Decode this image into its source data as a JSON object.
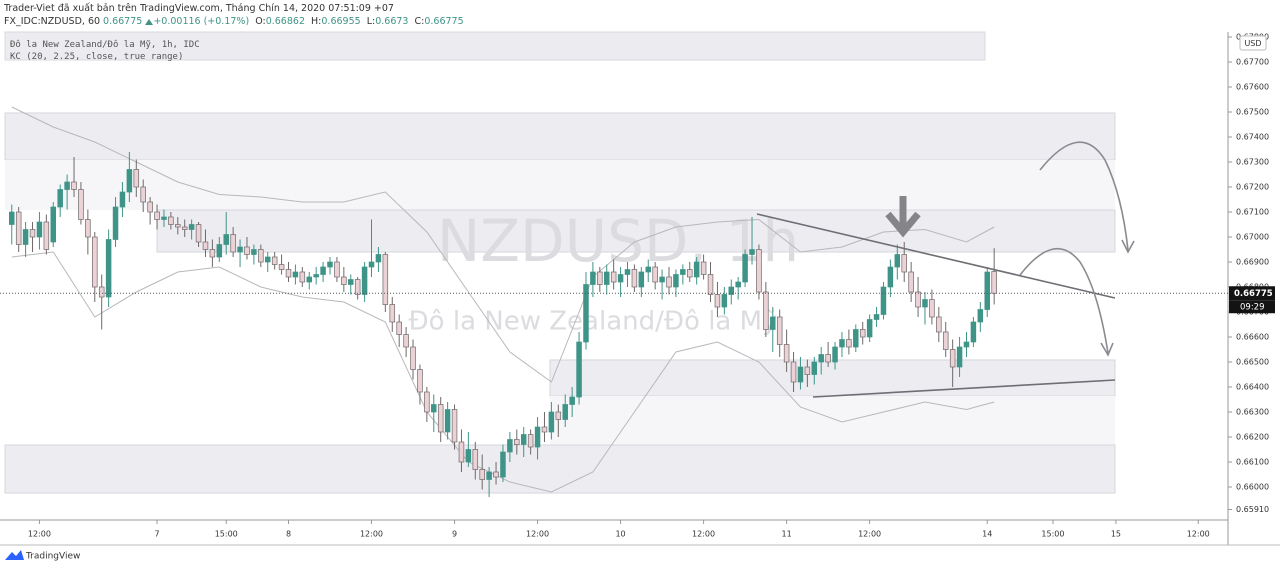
{
  "header": {
    "publisher": "Trader-Viet đã xuất bản trên TradingView.com, Tháng Chín 14, 2020 07:51:09 +07",
    "symbol": "FX_IDC:NZDUSD, 60",
    "change": "+0.00116 (+0.17%)",
    "o_label": "O:",
    "h_label": "H:",
    "l_label": "L:",
    "c_label": "C:"
  },
  "footer": {
    "brand": "TradingView"
  },
  "chart_data": {
    "type": "candlestick",
    "title": "Đô la New Zealand/Đô la Mỹ, 1h, IDC",
    "watermark": "NZDUSD, 1h",
    "watermark_subtitle": "Đô la New Zealand/Đô la Mỹ",
    "currency": "USD",
    "countdown": "09:29",
    "up_color": "#3f9488",
    "down_color": "#ead2d6",
    "grid": false,
    "xlim": [
      -1.7,
      175.8
    ],
    "ylim": [
      0.65868,
      0.6782
    ],
    "xticks": [
      {
        "value": 4,
        "label": "12:00"
      },
      {
        "value": 21,
        "label": "7"
      },
      {
        "value": 31,
        "label": "15:00"
      },
      {
        "value": 40,
        "label": "8"
      },
      {
        "value": 52,
        "label": "12:00"
      },
      {
        "value": 64,
        "label": "9"
      },
      {
        "value": 76,
        "label": "12:00"
      },
      {
        "value": 88,
        "label": "10"
      },
      {
        "value": 100,
        "label": "12:00"
      },
      {
        "value": 112,
        "label": "11"
      },
      {
        "value": 124,
        "label": "12:00"
      },
      {
        "value": 141,
        "label": "14"
      },
      {
        "value": 150.5,
        "label": "15:00"
      },
      {
        "value": 159.6,
        "label": "15"
      },
      {
        "value": 171.5,
        "label": "12:00"
      }
    ],
    "yticks": [
      {
        "value": 0.6591,
        "label": "0.65910"
      },
      {
        "value": 0.66,
        "label": "0.66000"
      },
      {
        "value": 0.661,
        "label": "0.66100"
      },
      {
        "value": 0.662,
        "label": "0.66200"
      },
      {
        "value": 0.663,
        "label": "0.66300"
      },
      {
        "value": 0.664,
        "label": "0.66400"
      },
      {
        "value": 0.665,
        "label": "0.66500"
      },
      {
        "value": 0.666,
        "label": "0.66600"
      },
      {
        "value": 0.667,
        "label": "0.66700"
      },
      {
        "value": 0.668,
        "label": "0.66800"
      },
      {
        "value": 0.669,
        "label": "0.66900"
      },
      {
        "value": 0.67,
        "label": "0.67000"
      },
      {
        "value": 0.671,
        "label": "0.67100"
      },
      {
        "value": 0.672,
        "label": "0.67200"
      },
      {
        "value": 0.673,
        "label": "0.67300"
      },
      {
        "value": 0.674,
        "label": "0.67400"
      },
      {
        "value": 0.675,
        "label": "0.67500"
      },
      {
        "value": 0.676,
        "label": "0.67600"
      },
      {
        "value": 0.677,
        "label": "0.67700"
      },
      {
        "value": 0.678,
        "label": "0.67800"
      }
    ],
    "ohlc": {
      "open": [
        0.6705,
        0.671,
        0.6697,
        0.6703,
        0.67,
        0.6706,
        0.6698,
        0.6712,
        0.6719,
        0.6722,
        0.6719,
        0.6707,
        0.67,
        0.668,
        0.6676,
        0.6699,
        0.6712,
        0.6718,
        0.6727,
        0.672,
        0.6714,
        0.671,
        0.6707,
        0.6708,
        0.6705,
        0.6704,
        0.6703,
        0.6705,
        0.6698,
        0.6695,
        0.6692,
        0.6697,
        0.6701,
        0.6694,
        0.6696,
        0.6693,
        0.6695,
        0.669,
        0.6692,
        0.6689,
        0.6687,
        0.6684,
        0.6686,
        0.6682,
        0.6684,
        0.6685,
        0.6688,
        0.669,
        0.6684,
        0.6681,
        0.6683,
        0.6677,
        0.6688,
        0.669,
        0.6693,
        0.6673,
        0.6666,
        0.6661,
        0.6656,
        0.6647,
        0.6638,
        0.663,
        0.6633,
        0.6622,
        0.6631,
        0.6618,
        0.661,
        0.6615,
        0.6607,
        0.6603,
        0.6606,
        0.6604,
        0.6614,
        0.6619,
        0.6617,
        0.6621,
        0.6616,
        0.6624,
        0.6622,
        0.663,
        0.6627,
        0.6633,
        0.6636,
        0.6658,
        0.6681,
        0.6686,
        0.6681,
        0.6686,
        0.6682,
        0.6685,
        0.6687,
        0.668,
        0.6686,
        0.6688,
        0.6682,
        0.6684,
        0.668,
        0.6685,
        0.6687,
        0.6684,
        0.669,
        0.6685,
        0.6677,
        0.6672,
        0.6677,
        0.668,
        0.6682,
        0.6693,
        0.6695,
        0.6678,
        0.6663,
        0.6668,
        0.6657,
        0.665,
        0.6642,
        0.6648,
        0.6645,
        0.665,
        0.6653,
        0.665,
        0.6656,
        0.6659,
        0.6656,
        0.6663,
        0.666,
        0.6667,
        0.6669,
        0.668,
        0.6688,
        0.6693,
        0.6686,
        0.6678,
        0.6672,
        0.6675,
        0.6668,
        0.6662,
        0.6655,
        0.6648,
        0.6656,
        0.6658,
        0.6666,
        0.6671,
        0.66862
      ],
      "high": [
        0.6713,
        0.6712,
        0.6706,
        0.6706,
        0.671,
        0.6709,
        0.6714,
        0.6721,
        0.6725,
        0.6732,
        0.6722,
        0.6711,
        0.6702,
        0.6685,
        0.6703,
        0.6716,
        0.6722,
        0.6734,
        0.6731,
        0.6723,
        0.6716,
        0.6713,
        0.6711,
        0.671,
        0.6708,
        0.6707,
        0.6707,
        0.6706,
        0.6703,
        0.6699,
        0.67,
        0.671,
        0.6704,
        0.6699,
        0.67,
        0.6697,
        0.6697,
        0.6694,
        0.6694,
        0.6693,
        0.669,
        0.6689,
        0.6688,
        0.6686,
        0.6688,
        0.669,
        0.6692,
        0.6692,
        0.6688,
        0.6685,
        0.6684,
        0.669,
        0.6707,
        0.6696,
        0.6694,
        0.6676,
        0.6669,
        0.6664,
        0.6659,
        0.6649,
        0.664,
        0.6637,
        0.6636,
        0.6634,
        0.6633,
        0.6623,
        0.6622,
        0.6618,
        0.6613,
        0.6608,
        0.661,
        0.6617,
        0.6622,
        0.6623,
        0.6624,
        0.6623,
        0.6628,
        0.663,
        0.6634,
        0.6633,
        0.6637,
        0.664,
        0.6662,
        0.6686,
        0.669,
        0.6688,
        0.6689,
        0.6691,
        0.6688,
        0.669,
        0.6689,
        0.6688,
        0.6691,
        0.669,
        0.6687,
        0.6688,
        0.6687,
        0.6689,
        0.669,
        0.6692,
        0.6693,
        0.669,
        0.6682,
        0.668,
        0.6683,
        0.6684,
        0.6695,
        0.6708,
        0.6697,
        0.6682,
        0.6672,
        0.6671,
        0.6663,
        0.6654,
        0.6652,
        0.6651,
        0.6652,
        0.6656,
        0.6658,
        0.6658,
        0.6662,
        0.6663,
        0.6665,
        0.6666,
        0.6669,
        0.6672,
        0.6682,
        0.6691,
        0.6697,
        0.6698,
        0.669,
        0.6684,
        0.6678,
        0.6679,
        0.6672,
        0.6666,
        0.6659,
        0.666,
        0.6662,
        0.6668,
        0.6674,
        0.6688,
        0.66955
      ],
      "low": [
        0.6697,
        0.6694,
        0.6692,
        0.6694,
        0.6695,
        0.6693,
        0.6696,
        0.6708,
        0.6711,
        0.6716,
        0.6705,
        0.6693,
        0.6674,
        0.6663,
        0.6672,
        0.6696,
        0.6708,
        0.6714,
        0.6716,
        0.671,
        0.6705,
        0.6703,
        0.6704,
        0.6703,
        0.6701,
        0.67,
        0.6699,
        0.6696,
        0.6692,
        0.6688,
        0.669,
        0.6693,
        0.6692,
        0.6688,
        0.6691,
        0.6689,
        0.6688,
        0.6686,
        0.6687,
        0.6685,
        0.6682,
        0.6681,
        0.668,
        0.6679,
        0.6681,
        0.6682,
        0.6685,
        0.6682,
        0.6678,
        0.6677,
        0.6675,
        0.6674,
        0.6684,
        0.6686,
        0.667,
        0.6662,
        0.6656,
        0.6652,
        0.6643,
        0.6633,
        0.6626,
        0.6622,
        0.6618,
        0.6619,
        0.6615,
        0.6606,
        0.6608,
        0.6603,
        0.6599,
        0.6596,
        0.6601,
        0.6602,
        0.661,
        0.6613,
        0.6612,
        0.6613,
        0.6611,
        0.6618,
        0.6619,
        0.662,
        0.6624,
        0.6628,
        0.6633,
        0.6655,
        0.6676,
        0.6678,
        0.6677,
        0.6679,
        0.6676,
        0.668,
        0.6678,
        0.6676,
        0.6682,
        0.6679,
        0.6675,
        0.6677,
        0.6676,
        0.6681,
        0.6682,
        0.6681,
        0.6683,
        0.6674,
        0.6668,
        0.6669,
        0.6673,
        0.6675,
        0.668,
        0.6689,
        0.6675,
        0.666,
        0.6654,
        0.6652,
        0.6646,
        0.6638,
        0.6639,
        0.664,
        0.6641,
        0.6645,
        0.6648,
        0.6647,
        0.6652,
        0.6653,
        0.6654,
        0.6657,
        0.6658,
        0.6664,
        0.6667,
        0.6676,
        0.6683,
        0.6682,
        0.6674,
        0.6668,
        0.6665,
        0.6665,
        0.6658,
        0.6652,
        0.664,
        0.6644,
        0.6652,
        0.6656,
        0.6662,
        0.6668,
        0.6673
      ],
      "close": [
        0.671,
        0.6697,
        0.6703,
        0.67,
        0.6706,
        0.6695,
        0.6712,
        0.6719,
        0.6722,
        0.6719,
        0.6707,
        0.67,
        0.668,
        0.6676,
        0.6699,
        0.6712,
        0.6718,
        0.6727,
        0.672,
        0.6714,
        0.671,
        0.6707,
        0.6708,
        0.6705,
        0.6704,
        0.6703,
        0.6705,
        0.6698,
        0.6695,
        0.6692,
        0.6697,
        0.6701,
        0.6694,
        0.6696,
        0.6693,
        0.6695,
        0.669,
        0.6692,
        0.6689,
        0.6687,
        0.6684,
        0.6686,
        0.6682,
        0.6684,
        0.6685,
        0.6688,
        0.669,
        0.6684,
        0.6681,
        0.6683,
        0.6677,
        0.6688,
        0.669,
        0.6693,
        0.6673,
        0.6666,
        0.6661,
        0.6656,
        0.6647,
        0.6638,
        0.663,
        0.6633,
        0.6622,
        0.6631,
        0.6618,
        0.661,
        0.6615,
        0.6607,
        0.6603,
        0.6606,
        0.6604,
        0.6614,
        0.6619,
        0.6617,
        0.6621,
        0.6616,
        0.6624,
        0.6622,
        0.663,
        0.6627,
        0.6633,
        0.6636,
        0.6658,
        0.6681,
        0.6686,
        0.6681,
        0.6686,
        0.6682,
        0.6685,
        0.6687,
        0.668,
        0.6686,
        0.6688,
        0.6682,
        0.6684,
        0.668,
        0.6685,
        0.6687,
        0.6684,
        0.669,
        0.6685,
        0.6677,
        0.6672,
        0.6677,
        0.668,
        0.6682,
        0.6693,
        0.6695,
        0.6678,
        0.6663,
        0.6668,
        0.6657,
        0.665,
        0.6642,
        0.6648,
        0.6645,
        0.665,
        0.6653,
        0.665,
        0.6656,
        0.6659,
        0.6656,
        0.6663,
        0.666,
        0.6667,
        0.6669,
        0.668,
        0.6688,
        0.6693,
        0.6686,
        0.6678,
        0.6672,
        0.6675,
        0.6668,
        0.6662,
        0.6655,
        0.6648,
        0.6656,
        0.6658,
        0.6666,
        0.6671,
        0.6686,
        0.66775
      ]
    },
    "indicator": {
      "label": "KC (20, 2.25, close, true range)",
      "x": [
        0,
        6,
        12,
        18,
        24,
        30,
        36,
        42,
        48,
        54,
        60,
        66,
        72,
        78,
        84,
        90,
        96,
        102,
        108,
        114,
        120,
        126,
        132,
        138,
        142
      ],
      "upper": [
        0.6752,
        0.6744,
        0.6738,
        0.673,
        0.6722,
        0.6717,
        0.6716,
        0.6714,
        0.6714,
        0.6718,
        0.6702,
        0.6678,
        0.6654,
        0.6642,
        0.6684,
        0.6698,
        0.6704,
        0.6706,
        0.6707,
        0.6694,
        0.6696,
        0.6702,
        0.6703,
        0.6698,
        0.6704
      ],
      "lower": [
        0.6692,
        0.6694,
        0.6668,
        0.6678,
        0.6686,
        0.6688,
        0.668,
        0.6676,
        0.6674,
        0.6666,
        0.663,
        0.661,
        0.6602,
        0.6598,
        0.6606,
        0.663,
        0.6654,
        0.6658,
        0.665,
        0.6632,
        0.6626,
        0.663,
        0.6634,
        0.6631,
        0.6634
      ]
    }
  }
}
